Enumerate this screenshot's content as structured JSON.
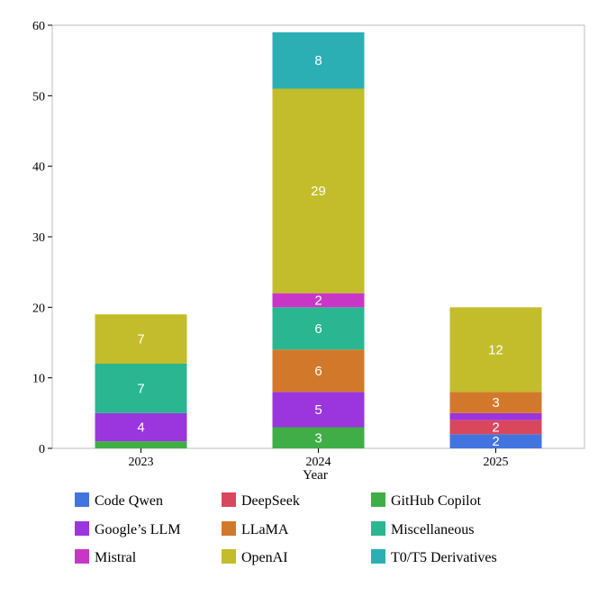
{
  "chart_data": {
    "type": "bar",
    "stacked": true,
    "categories": [
      "2023",
      "2024",
      "2025"
    ],
    "xlabel": "Year",
    "ylabel": "",
    "ylim": [
      0,
      60
    ],
    "yticks": [
      0,
      10,
      20,
      30,
      40,
      50,
      60
    ],
    "grid": false,
    "legend_position": "bottom",
    "series": [
      {
        "name": "Code Qwen",
        "color": "#4274e0",
        "values": [
          0,
          0,
          2
        ],
        "labels": [
          "",
          "",
          "2"
        ]
      },
      {
        "name": "DeepSeek",
        "color": "#d9475d",
        "values": [
          0,
          0,
          2
        ],
        "labels": [
          "",
          "",
          "2"
        ]
      },
      {
        "name": "GitHub Copilot",
        "color": "#3fae47",
        "values": [
          1,
          3,
          0
        ],
        "labels": [
          "",
          "3",
          ""
        ]
      },
      {
        "name": "Google’s LLM",
        "color": "#9b35dd",
        "values": [
          4,
          5,
          1
        ],
        "labels": [
          "4",
          "5",
          ""
        ]
      },
      {
        "name": "LLaMA",
        "color": "#d2782a",
        "values": [
          0,
          6,
          3
        ],
        "labels": [
          "",
          "6",
          "3"
        ]
      },
      {
        "name": "Miscellaneous",
        "color": "#2ab690",
        "values": [
          7,
          6,
          0
        ],
        "labels": [
          "7",
          "6",
          ""
        ]
      },
      {
        "name": "Mistral",
        "color": "#c836c8",
        "values": [
          0,
          2,
          0
        ],
        "labels": [
          "",
          "2",
          ""
        ]
      },
      {
        "name": "OpenAI",
        "color": "#c3bd2b",
        "values": [
          7,
          29,
          12
        ],
        "labels": [
          "7",
          "29",
          "12"
        ]
      },
      {
        "name": "T0/T5 Derivatives",
        "color": "#2bafb4",
        "values": [
          0,
          8,
          0
        ],
        "labels": [
          "",
          "8",
          ""
        ]
      }
    ]
  }
}
